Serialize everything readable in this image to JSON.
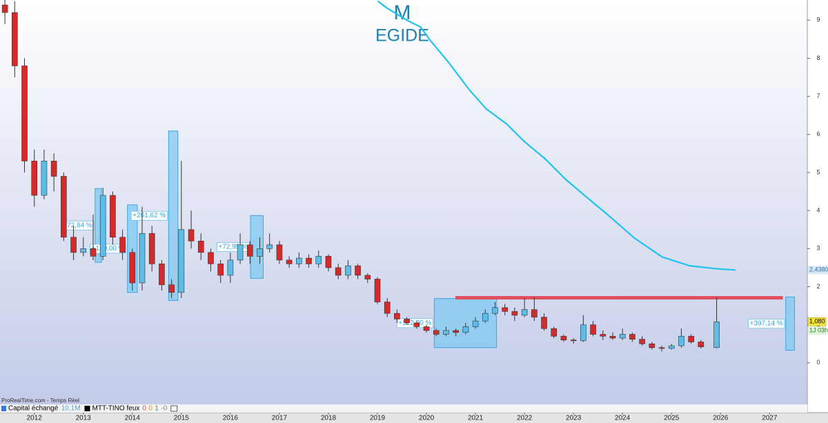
{
  "chart_data": {
    "type": "candlestick",
    "title": "M",
    "subtitle": "EGIDE",
    "source": "ProRealTime.com - Temps Réel",
    "xlim": [
      2011.3,
      2027.77
    ],
    "ylim": [
      -1.09,
      9.53
    ],
    "xticks": [
      2012,
      2013,
      2014,
      2015,
      2016,
      2017,
      2018,
      2019,
      2020,
      2021,
      2022,
      2023,
      2024,
      2025,
      2026,
      2027
    ],
    "yticks": [
      0,
      1,
      2,
      3,
      4,
      5,
      6,
      7,
      8,
      9
    ],
    "up_color": "#5bbde8",
    "down_color": "#d42a2a",
    "x": [
      2011.4,
      2011.6,
      2011.8,
      2012.0,
      2012.2,
      2012.4,
      2012.6,
      2012.8,
      2013.0,
      2013.2,
      2013.4,
      2013.6,
      2013.8,
      2014.0,
      2014.2,
      2014.4,
      2014.6,
      2014.8,
      2015.0,
      2015.2,
      2015.4,
      2015.6,
      2015.8,
      2016.0,
      2016.2,
      2016.4,
      2016.6,
      2016.8,
      2017.0,
      2017.2,
      2017.4,
      2017.6,
      2017.8,
      2018.0,
      2018.2,
      2018.4,
      2018.6,
      2018.8,
      2019.0,
      2019.2,
      2019.4,
      2019.6,
      2019.8,
      2020.0,
      2020.2,
      2020.4,
      2020.6,
      2020.8,
      2021.0,
      2021.2,
      2021.4,
      2021.6,
      2021.8,
      2022.0,
      2022.2,
      2022.4,
      2022.6,
      2022.8,
      2023.0,
      2023.2,
      2023.4,
      2023.6,
      2023.8,
      2024.0,
      2024.2,
      2024.4,
      2024.6,
      2024.8,
      2025.0,
      2025.2,
      2025.4,
      2025.6,
      2025.92
    ],
    "open": [
      9.4,
      9.2,
      7.8,
      5.3,
      4.4,
      5.3,
      4.9,
      3.3,
      2.9,
      3.0,
      2.8,
      4.4,
      3.3,
      2.9,
      2.1,
      3.4,
      2.6,
      2.05,
      1.85,
      3.5,
      3.2,
      2.9,
      2.6,
      2.3,
      2.7,
      3.1,
      2.8,
      3.0,
      3.1,
      2.7,
      2.6,
      2.75,
      2.6,
      2.8,
      2.5,
      2.3,
      2.55,
      2.3,
      2.2,
      1.6,
      1.3,
      1.15,
      1.05,
      0.95,
      0.85,
      0.75,
      0.85,
      0.8,
      0.95,
      1.1,
      1.3,
      1.45,
      1.35,
      1.25,
      1.4,
      1.2,
      0.9,
      0.7,
      0.6,
      0.58,
      1.0,
      0.75,
      0.7,
      0.65,
      0.75,
      0.62,
      0.5,
      0.4,
      0.38,
      0.45,
      0.7,
      0.55,
      0.4
    ],
    "high": [
      9.6,
      9.5,
      8.0,
      5.6,
      5.6,
      5.5,
      5.0,
      3.6,
      3.3,
      3.9,
      4.6,
      4.5,
      3.5,
      3.0,
      4.1,
      3.6,
      2.7,
      2.2,
      5.3,
      4.0,
      3.4,
      3.0,
      2.7,
      2.9,
      3.4,
      3.2,
      3.3,
      3.4,
      3.2,
      2.8,
      2.9,
      2.85,
      2.95,
      2.85,
      2.6,
      2.7,
      2.6,
      2.35,
      2.25,
      1.7,
      1.4,
      1.2,
      1.1,
      1.0,
      0.9,
      0.95,
      0.9,
      1.05,
      1.2,
      1.4,
      1.6,
      1.55,
      1.45,
      1.7,
      1.72,
      1.3,
      0.95,
      0.75,
      0.65,
      1.25,
      1.1,
      0.85,
      0.8,
      0.9,
      0.8,
      0.7,
      0.55,
      0.45,
      0.5,
      0.9,
      0.75,
      0.6,
      1.72
    ],
    "low": [
      8.9,
      7.5,
      5.0,
      4.1,
      4.3,
      4.5,
      3.2,
      2.7,
      2.8,
      2.7,
      2.7,
      3.1,
      2.7,
      1.9,
      1.9,
      2.4,
      1.9,
      1.7,
      1.7,
      3.0,
      2.7,
      2.4,
      2.1,
      2.1,
      2.6,
      2.6,
      2.6,
      2.9,
      2.6,
      2.5,
      2.5,
      2.5,
      2.5,
      2.4,
      2.2,
      2.2,
      2.2,
      2.1,
      1.55,
      1.2,
      1.05,
      1.0,
      0.9,
      0.8,
      0.7,
      0.7,
      0.7,
      0.75,
      0.9,
      1.05,
      1.25,
      1.25,
      1.1,
      1.2,
      1.1,
      0.85,
      0.65,
      0.55,
      0.5,
      0.55,
      0.7,
      0.6,
      0.6,
      0.6,
      0.55,
      0.45,
      0.35,
      0.3,
      0.35,
      0.4,
      0.5,
      0.38,
      0.38
    ],
    "close": [
      9.2,
      7.8,
      5.3,
      4.4,
      5.3,
      4.9,
      3.3,
      2.9,
      3.0,
      2.8,
      4.4,
      3.3,
      2.9,
      2.1,
      3.4,
      2.6,
      2.05,
      1.85,
      3.5,
      3.2,
      2.9,
      2.6,
      2.3,
      2.7,
      3.1,
      2.8,
      3.0,
      3.1,
      2.7,
      2.6,
      2.75,
      2.6,
      2.8,
      2.5,
      2.3,
      2.55,
      2.3,
      2.2,
      1.6,
      1.3,
      1.15,
      1.05,
      0.95,
      0.85,
      0.75,
      0.85,
      0.8,
      0.95,
      1.1,
      1.3,
      1.45,
      1.35,
      1.25,
      1.4,
      1.2,
      0.9,
      0.7,
      0.6,
      0.58,
      1.0,
      0.75,
      0.7,
      0.65,
      0.75,
      0.62,
      0.5,
      0.4,
      0.38,
      0.45,
      0.7,
      0.55,
      0.42,
      1.08
    ],
    "close_label": "1,080",
    "countdown": "1J 03h",
    "moving_average": {
      "color": "#1ec3ee",
      "label": "2,4380",
      "x": [
        2019.01,
        2019.18,
        2019.6,
        2019.88,
        2020.09,
        2020.44,
        2020.87,
        2021.22,
        2021.64,
        2021.99,
        2022.42,
        2022.84,
        2023.26,
        2023.68,
        2024.25,
        2024.81,
        2025.37,
        2025.93,
        2026.31
      ],
      "values": [
        9.5,
        9.33,
        9.0,
        8.82,
        8.45,
        7.91,
        7.18,
        6.67,
        6.27,
        5.82,
        5.36,
        4.82,
        4.36,
        3.91,
        3.27,
        2.78,
        2.55,
        2.47,
        2.438
      ]
    },
    "resistance": {
      "value": 1.71,
      "x": [
        2020.59,
        2027.27
      ],
      "color": "#e0505f"
    },
    "annotations": [
      {
        "label": "+72,84 %",
        "x": [
          2013.24,
          2013.37
        ],
        "y": [
          2.64,
          4.58
        ]
      },
      {
        "label": "+120,00 %",
        "x": [
          2013.9,
          2014.1
        ],
        "y": [
          1.85,
          4.15
        ]
      },
      {
        "label": "+261,62 %",
        "x": [
          2014.74,
          2014.93
        ],
        "y": [
          1.64,
          6.09
        ]
      },
      {
        "label": "+72,95 %",
        "x": [
          2016.41,
          2016.67
        ],
        "y": [
          2.22,
          3.87
        ]
      },
      {
        "label": "+312,20 %",
        "x": [
          2020.16,
          2021.43
        ],
        "y": [
          0.4,
          1.69
        ]
      },
      {
        "label": "+397,14 %",
        "x": [
          2027.33,
          2027.51
        ],
        "y": [
          0.33,
          1.73
        ]
      }
    ],
    "indicators": [
      {
        "name": "Capital échangé",
        "value": "10,1M"
      },
      {
        "name": "MTT-TINO feux",
        "values": [
          "0",
          "0",
          "1",
          "-0"
        ]
      }
    ]
  }
}
